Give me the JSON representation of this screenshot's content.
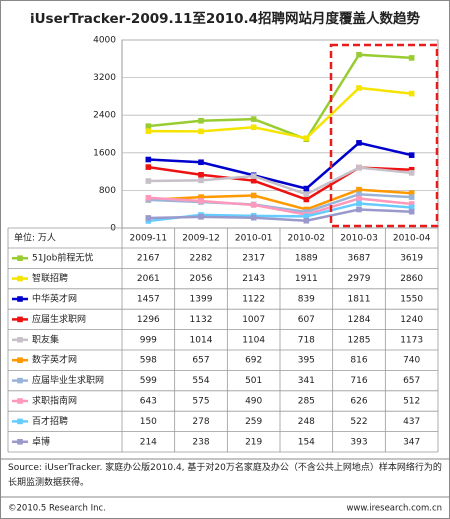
{
  "chart_data": {
    "type": "line",
    "title": "iUserTracker-2009.11至2010.4招聘网站月度覆盖人数趋势",
    "unit_label": "单位: 万人",
    "categories": [
      "2009-11",
      "2009-12",
      "2010-01",
      "2010-02",
      "2010-03",
      "2010-04"
    ],
    "ylim": [
      0,
      4000
    ],
    "yticks": [
      0,
      800,
      1600,
      2400,
      3200,
      4000
    ],
    "grid": true,
    "series": [
      {
        "name": "51Job前程无忧",
        "color": "#99cc33",
        "values": [
          2167,
          2282,
          2317,
          1889,
          3687,
          3619
        ]
      },
      {
        "name": "智联招聘",
        "color": "#f5e400",
        "values": [
          2061,
          2056,
          2143,
          1911,
          2979,
          2860
        ]
      },
      {
        "name": "中华英才网",
        "color": "#0000cc",
        "values": [
          1457,
          1399,
          1122,
          839,
          1811,
          1550
        ]
      },
      {
        "name": "应届生求职网",
        "color": "#ee1111",
        "values": [
          1296,
          1132,
          1007,
          607,
          1284,
          1240
        ]
      },
      {
        "name": "职友集",
        "color": "#c8c0c8",
        "values": [
          999,
          1014,
          1104,
          718,
          1285,
          1173
        ]
      },
      {
        "name": "数字英才网",
        "color": "#ff9900",
        "values": [
          598,
          657,
          692,
          395,
          816,
          740
        ]
      },
      {
        "name": "应届毕业生求职网",
        "color": "#99b4d8",
        "values": [
          599,
          554,
          501,
          341,
          716,
          657
        ]
      },
      {
        "name": "求职指南网",
        "color": "#ff99bb",
        "values": [
          643,
          575,
          490,
          285,
          626,
          512
        ]
      },
      {
        "name": "百才招聘",
        "color": "#66ccff",
        "values": [
          150,
          278,
          259,
          248,
          522,
          437
        ]
      },
      {
        "name": "卓博",
        "color": "#9999cc",
        "values": [
          214,
          238,
          219,
          154,
          393,
          347
        ]
      }
    ]
  },
  "footer": {
    "source": "Source: iUserTracker. 家庭办公版2010.4, 基于对20万名家庭及办公（不含公共上网地点）样本网络行为的长期监测数据获得。",
    "copyright": "©2010.5 Research Inc.",
    "website": "www.iresearch.com.cn"
  }
}
